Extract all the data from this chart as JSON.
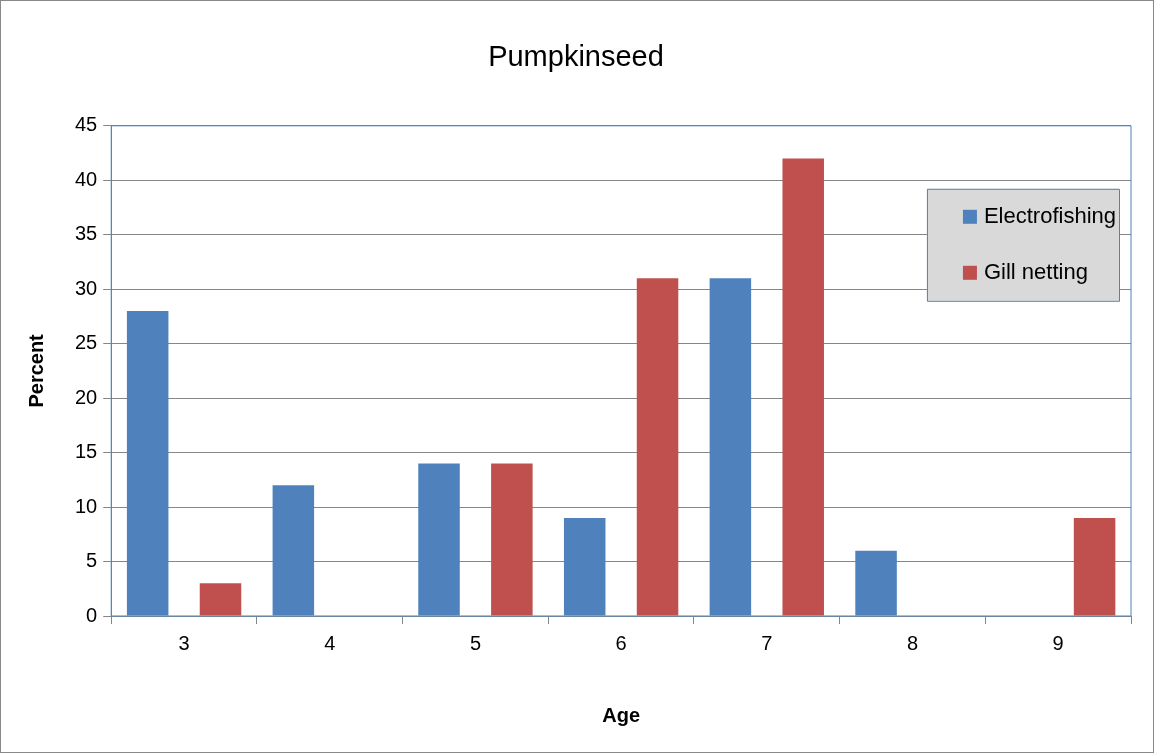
{
  "chart_data": {
    "type": "bar",
    "title": "Pumpkinseed",
    "xlabel": "Age",
    "ylabel": "Percent",
    "categories": [
      "3",
      "4",
      "5",
      "6",
      "7",
      "8",
      "9"
    ],
    "series": [
      {
        "name": "Electrofishing",
        "color": "#4f81bd",
        "values": [
          28,
          12,
          14,
          9,
          31,
          6,
          0
        ]
      },
      {
        "name": "Gill netting",
        "color": "#c0504d",
        "values": [
          3,
          0,
          14,
          31,
          42,
          0,
          9
        ]
      }
    ],
    "ylim": [
      0,
      45
    ],
    "yticks": [
      0,
      5,
      10,
      15,
      20,
      25,
      30,
      35,
      40,
      45
    ],
    "grid": "y",
    "legend": "top right"
  }
}
